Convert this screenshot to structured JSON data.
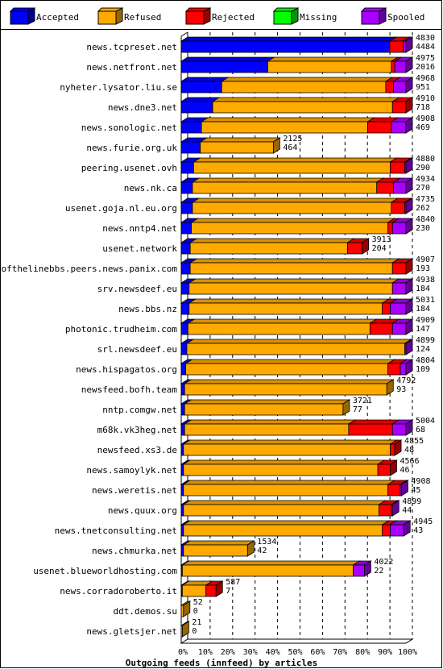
{
  "chart_data": {
    "type": "bar",
    "subtype": "stacked-horizontal-3d",
    "title": "Outgoing feeds (innfeed) by articles",
    "xlim": [
      0,
      100
    ],
    "x_ticks": [
      "0%",
      "10%",
      "20%",
      "30%",
      "40%",
      "50%",
      "60%",
      "70%",
      "80%",
      "90%",
      "100%"
    ],
    "grid": true,
    "legend_position": "top",
    "series": [
      {
        "name": "Accepted",
        "color": "#0000FF"
      },
      {
        "name": "Refused",
        "color": "#FFAA00"
      },
      {
        "name": "Rejected",
        "color": "#FF0000"
      },
      {
        "name": "Missing",
        "color": "#00FF00"
      },
      {
        "name": "Spooled",
        "color": "#AA00FF"
      }
    ],
    "rows": [
      {
        "label": "news.tcpreset.net",
        "total": "4830",
        "accepted": "4484",
        "segments": [
          92.8,
          0,
          6.0,
          0,
          1.2
        ]
      },
      {
        "label": "news.netfront.net",
        "total": "4975",
        "accepted": "2016",
        "segments": [
          38.5,
          55.0,
          1.5,
          0,
          5.0
        ]
      },
      {
        "label": "nyheter.lysator.liu.se",
        "total": "4968",
        "accepted": "951",
        "segments": [
          18.0,
          73.0,
          3.5,
          0,
          5.5
        ]
      },
      {
        "label": "news.dne3.net",
        "total": "4910",
        "accepted": "718",
        "segments": [
          14.0,
          80.0,
          6.0,
          0,
          0
        ]
      },
      {
        "label": "news.sonologic.net",
        "total": "4908",
        "accepted": "469",
        "segments": [
          9.0,
          74.0,
          10.5,
          0,
          6.5
        ]
      },
      {
        "label": "news.furie.org.uk",
        "total": "2125",
        "accepted": "464",
        "segments": [
          8.5,
          32.5,
          0,
          0,
          0
        ]
      },
      {
        "label": "peering.usenet.ovh",
        "total": "4880",
        "accepted": "290",
        "segments": [
          5.5,
          87.5,
          6.5,
          0,
          0.5
        ]
      },
      {
        "label": "news.nk.ca",
        "total": "4934",
        "accepted": "270",
        "segments": [
          5.0,
          82.0,
          7.5,
          0,
          5.5
        ]
      },
      {
        "label": "usenet.goja.nl.eu.org",
        "total": "4735",
        "accepted": "262",
        "segments": [
          5.0,
          88.5,
          6.0,
          0,
          0.5
        ]
      },
      {
        "label": "news.nntp4.net",
        "total": "4840",
        "accepted": "230",
        "segments": [
          4.5,
          87.5,
          2.0,
          0,
          6.0
        ]
      },
      {
        "label": "usenet.network",
        "total": "3913",
        "accepted": "204",
        "segments": [
          4.0,
          70.0,
          6.5,
          0,
          0
        ]
      },
      {
        "label": "endofthelinebbs.peers.news.panix.com",
        "total": "4907",
        "accepted": "193",
        "segments": [
          4.0,
          90.0,
          6.0,
          0,
          0
        ]
      },
      {
        "label": "srv.newsdeef.eu",
        "total": "4938",
        "accepted": "184",
        "segments": [
          3.5,
          90.5,
          0,
          0,
          6.0
        ]
      },
      {
        "label": "news.bbs.nz",
        "total": "5031",
        "accepted": "184",
        "segments": [
          3.5,
          86.0,
          3.5,
          0,
          7.0
        ]
      },
      {
        "label": "photonic.trudheim.com",
        "total": "4909",
        "accepted": "147",
        "segments": [
          3.0,
          81.0,
          10.0,
          0,
          6.0
        ]
      },
      {
        "label": "srl.newsdeef.eu",
        "total": "4899",
        "accepted": "124",
        "segments": [
          2.5,
          97.0,
          0,
          0,
          0.5
        ]
      },
      {
        "label": "news.hispagatos.org",
        "total": "4804",
        "accepted": "109",
        "segments": [
          2.0,
          90.0,
          5.5,
          0,
          2.5
        ]
      },
      {
        "label": "newsfeed.bofh.team",
        "total": "4792",
        "accepted": "93",
        "segments": [
          1.5,
          90.0,
          0,
          0,
          0
        ]
      },
      {
        "label": "nntp.comgw.net",
        "total": "3721",
        "accepted": "77",
        "segments": [
          1.5,
          70.5,
          0,
          0,
          0
        ]
      },
      {
        "label": "m68k.vk3heg.net",
        "total": "5004",
        "accepted": "68",
        "segments": [
          1.5,
          73.0,
          19.5,
          0,
          6.0
        ]
      },
      {
        "label": "newsfeed.xs3.de",
        "total": "4855",
        "accepted": "48",
        "segments": [
          1.0,
          92.0,
          2.0,
          0,
          0
        ]
      },
      {
        "label": "news.samoylyk.net",
        "total": "4566",
        "accepted": "46",
        "segments": [
          1.0,
          86.5,
          5.5,
          0,
          0
        ]
      },
      {
        "label": "news.weretis.net",
        "total": "4908",
        "accepted": "45",
        "segments": [
          1.0,
          91.0,
          5.5,
          0,
          0.5
        ]
      },
      {
        "label": "news.quux.org",
        "total": "4899",
        "accepted": "44",
        "segments": [
          1.0,
          87.0,
          5.5,
          0,
          0.5
        ]
      },
      {
        "label": "news.tnetconsulting.net",
        "total": "4945",
        "accepted": "43",
        "segments": [
          1.0,
          88.5,
          3.5,
          0,
          6.0
        ]
      },
      {
        "label": "news.chmurka.net",
        "total": "1534",
        "accepted": "42",
        "segments": [
          1.0,
          28.5,
          0,
          0,
          0
        ]
      },
      {
        "label": "usenet.blueworldhosting.com",
        "total": "4022",
        "accepted": "22",
        "segments": [
          0.5,
          76.0,
          0,
          0,
          5.0
        ]
      },
      {
        "label": "news.corradoroberto.it",
        "total": "587",
        "accepted": "7",
        "segments": [
          0.5,
          10.5,
          4.5,
          0,
          0
        ]
      },
      {
        "label": "ddt.demos.su",
        "total": "52",
        "accepted": "0",
        "segments": [
          0,
          1.0,
          0,
          0,
          0
        ]
      },
      {
        "label": "news.gletsjer.net",
        "total": "21",
        "accepted": "0",
        "segments": [
          0,
          0.5,
          0,
          0,
          0
        ]
      }
    ]
  }
}
